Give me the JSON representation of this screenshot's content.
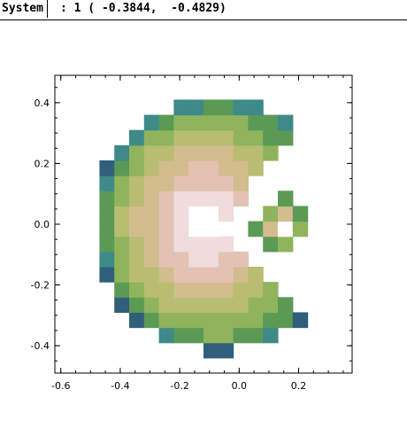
{
  "toolbar": {
    "system_label": "System",
    "coordinate_readout": ": 1 ( -0.3844,  -0.4829)"
  },
  "chart_data": {
    "type": "heatmap",
    "title": "",
    "xlabel": "",
    "ylabel": "",
    "xlim": [
      -0.62,
      0.38
    ],
    "ylim": [
      -0.49,
      0.49
    ],
    "x_ticks": [
      -0.6,
      -0.4,
      -0.2,
      0.0,
      0.2
    ],
    "x_tick_labels": [
      "-0.6",
      "-0.4",
      "-0.2",
      "0.0",
      "0.2"
    ],
    "y_ticks": [
      0.4,
      0.2,
      0.0,
      -0.2,
      -0.4
    ],
    "y_tick_labels": [
      "0.4",
      "0.2",
      "0.0",
      "-0.2",
      "-0.4"
    ],
    "grid": false,
    "colormap": [
      "#2f5f7a",
      "#3d8a88",
      "#5a9a55",
      "#8fb45c",
      "#b8bd72",
      "#d3bc8e",
      "#e3c2b4",
      "#f0dcdc",
      "#ffffff"
    ],
    "cell_size": 0.05,
    "main_shape": {
      "center": [
        -0.07,
        0.0
      ],
      "outer_radius": 0.42,
      "inner_notch": "wedge opening toward +x, apex near (-0.07, 0.0)"
    },
    "small_shape": {
      "center": [
        0.14,
        0.0
      ],
      "extent_x": [
        0.07,
        0.25
      ],
      "extent_y": [
        -0.1,
        0.1
      ]
    }
  }
}
